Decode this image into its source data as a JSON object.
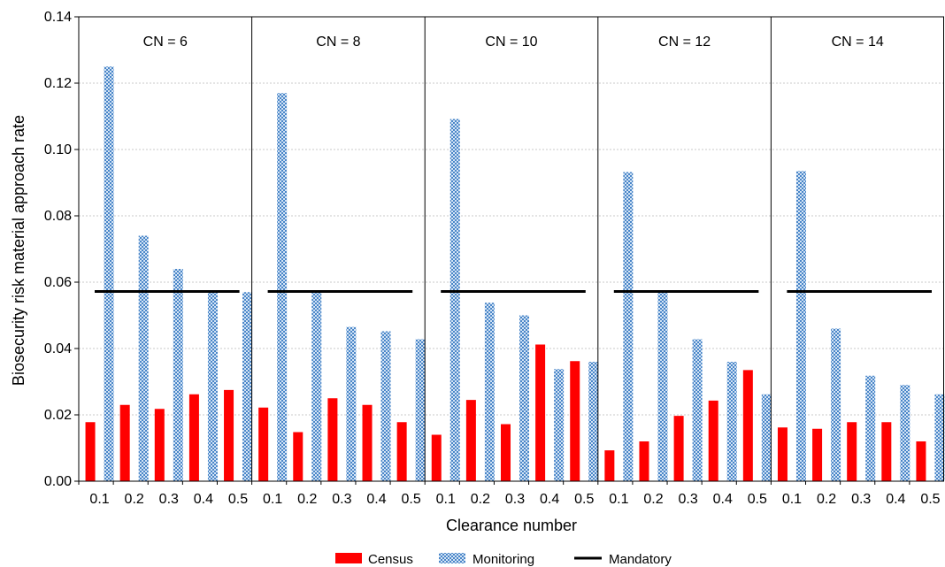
{
  "chart_data": {
    "type": "bar",
    "xlabel": "Clearance number",
    "ylabel": "Biosecurity risk material approach rate",
    "ylim": [
      0,
      0.14
    ],
    "yticks": [
      "0.00",
      "0.02",
      "0.04",
      "0.06",
      "0.08",
      "0.10",
      "0.12",
      "0.14"
    ],
    "categories": [
      "0.1",
      "0.2",
      "0.3",
      "0.4",
      "0.5"
    ],
    "grid": true,
    "legend": {
      "position": "bottom",
      "entries": [
        "Census",
        "Monitoring",
        "Mandatory"
      ]
    },
    "colors": {
      "census": "#ff0000",
      "monitoring": "#4a86c8",
      "mandatory": "#000000"
    },
    "panels": [
      {
        "title": "CN = 6",
        "series": [
          {
            "name": "Census",
            "values": [
              0.0178,
              0.023,
              0.0218,
              0.0262,
              0.0275
            ]
          },
          {
            "name": "Monitoring",
            "values": [
              0.125,
              0.074,
              0.064,
              0.057,
              0.057
            ]
          },
          {
            "name": "Mandatory",
            "values": [
              0.0572,
              0.0572,
              0.0572,
              0.0572,
              0.0572
            ]
          }
        ]
      },
      {
        "title": "CN = 8",
        "series": [
          {
            "name": "Census",
            "values": [
              0.0222,
              0.0148,
              0.025,
              0.023,
              0.0178
            ]
          },
          {
            "name": "Monitoring",
            "values": [
              0.117,
              0.057,
              0.0465,
              0.0452,
              0.0428
            ]
          },
          {
            "name": "Mandatory",
            "values": [
              0.0572,
              0.0572,
              0.0572,
              0.0572,
              0.0572
            ]
          }
        ]
      },
      {
        "title": "CN = 10",
        "series": [
          {
            "name": "Census",
            "values": [
              0.014,
              0.0245,
              0.0172,
              0.0412,
              0.0362
            ]
          },
          {
            "name": "Monitoring",
            "values": [
              0.1092,
              0.0538,
              0.05,
              0.0338,
              0.036
            ]
          },
          {
            "name": "Mandatory",
            "values": [
              0.0572,
              0.0572,
              0.0572,
              0.0572,
              0.0572
            ]
          }
        ]
      },
      {
        "title": "CN = 12",
        "series": [
          {
            "name": "Census",
            "values": [
              0.0093,
              0.012,
              0.0197,
              0.0243,
              0.0335
            ]
          },
          {
            "name": "Monitoring",
            "values": [
              0.0932,
              0.0568,
              0.0428,
              0.036,
              0.0262
            ]
          },
          {
            "name": "Mandatory",
            "values": [
              0.0572,
              0.0572,
              0.0572,
              0.0572,
              0.0572
            ]
          }
        ]
      },
      {
        "title": "CN = 14",
        "series": [
          {
            "name": "Census",
            "values": [
              0.0162,
              0.0158,
              0.0178,
              0.0178,
              0.012
            ]
          },
          {
            "name": "Monitoring",
            "values": [
              0.0935,
              0.046,
              0.0318,
              0.029,
              0.0262
            ]
          },
          {
            "name": "Mandatory",
            "values": [
              0.0572,
              0.0572,
              0.0572,
              0.0572,
              0.0572
            ]
          }
        ]
      }
    ]
  }
}
